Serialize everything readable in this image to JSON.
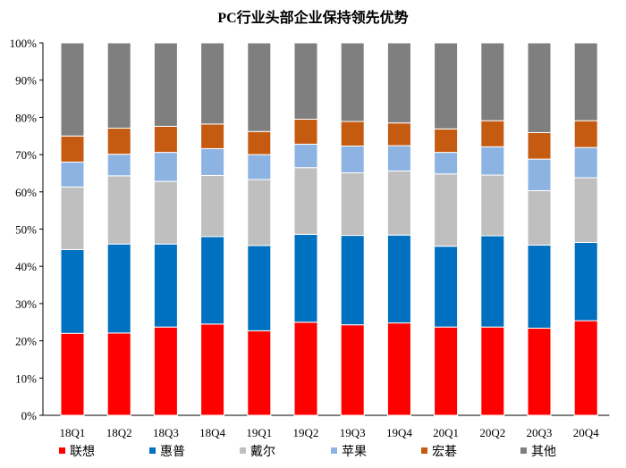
{
  "chart_data": {
    "type": "bar",
    "stacked": true,
    "title": "PC行业头部企业保持领先优势",
    "categories": [
      "18Q1",
      "18Q2",
      "18Q3",
      "18Q4",
      "19Q1",
      "19Q2",
      "19Q3",
      "19Q4",
      "20Q1",
      "20Q2",
      "20Q3",
      "20Q4"
    ],
    "ylim": [
      0,
      100
    ],
    "yticks": [
      "0%",
      "10%",
      "20%",
      "30%",
      "40%",
      "50%",
      "60%",
      "70%",
      "80%",
      "90%",
      "100%"
    ],
    "grid": false,
    "legend_position": "bottom",
    "series": [
      {
        "name": "联想",
        "color": "#ff0000",
        "values": [
          22.0,
          22.1,
          23.7,
          24.5,
          22.7,
          25.0,
          24.3,
          24.8,
          23.7,
          23.7,
          23.4,
          25.4
        ]
      },
      {
        "name": "惠普",
        "color": "#0070c0",
        "values": [
          22.5,
          23.9,
          22.3,
          23.5,
          22.9,
          23.6,
          24.0,
          23.6,
          21.7,
          24.5,
          22.3,
          21.0
        ]
      },
      {
        "name": "戴尔",
        "color": "#bfbfbf",
        "values": [
          16.8,
          18.3,
          16.8,
          16.4,
          17.7,
          17.9,
          16.8,
          17.2,
          19.4,
          16.3,
          14.6,
          17.4
        ]
      },
      {
        "name": "苹果",
        "color": "#8db3e2",
        "values": [
          6.7,
          5.8,
          7.8,
          7.2,
          6.7,
          6.3,
          7.2,
          6.8,
          5.8,
          7.6,
          8.5,
          8.1
        ]
      },
      {
        "name": "宏碁",
        "color": "#c55a11",
        "values": [
          7.0,
          7.0,
          7.0,
          6.6,
          6.2,
          6.7,
          6.6,
          6.1,
          6.3,
          7.0,
          7.1,
          7.2
        ]
      },
      {
        "name": "其他",
        "color": "#7f7f7f",
        "values": [
          25.0,
          22.9,
          22.4,
          21.8,
          23.8,
          20.5,
          21.1,
          21.5,
          23.1,
          20.9,
          24.1,
          20.9
        ]
      }
    ]
  }
}
